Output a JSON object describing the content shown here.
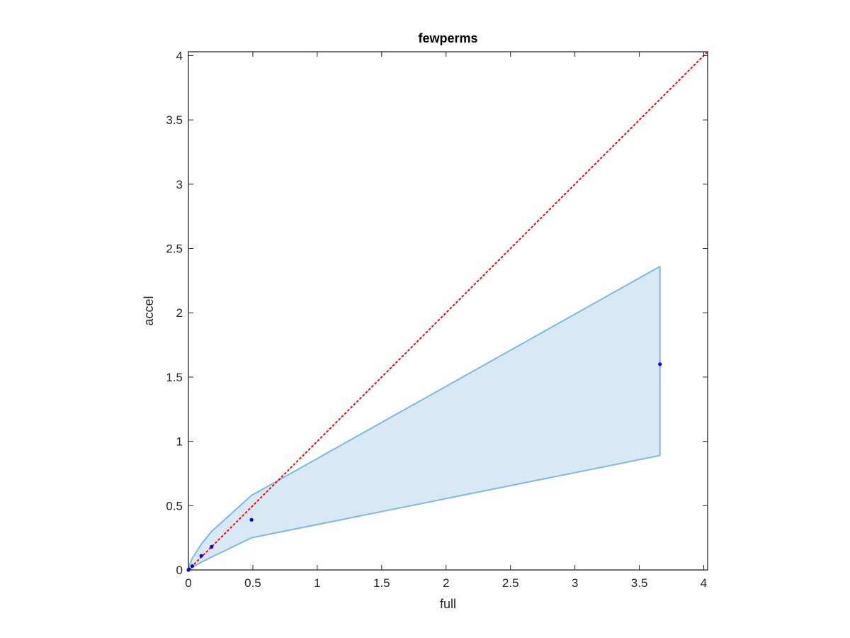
{
  "chart_data": {
    "type": "scatter",
    "title": "fewperms",
    "xlabel": "full",
    "ylabel": "accel",
    "xlim": [
      0,
      4.03
    ],
    "ylim": [
      0,
      4.03
    ],
    "xticks": [
      0,
      0.5,
      1,
      1.5,
      2,
      2.5,
      3,
      3.5,
      4
    ],
    "yticks": [
      0,
      0.5,
      1,
      1.5,
      2,
      2.5,
      3,
      3.5,
      4
    ],
    "xtick_labels": [
      "0",
      "0.5",
      "1",
      "1.5",
      "2",
      "2.5",
      "3",
      "3.5",
      "4"
    ],
    "ytick_labels": [
      "0",
      "0.5",
      "1",
      "1.5",
      "2",
      "2.5",
      "3",
      "3.5",
      "4"
    ],
    "grid": false,
    "points": {
      "color": "#0000ff",
      "x": [
        0.0,
        0.005,
        0.03,
        0.1,
        0.18,
        0.49,
        3.66
      ],
      "y": [
        0.0,
        0.005,
        0.03,
        0.11,
        0.18,
        0.39,
        1.6
      ]
    },
    "band": {
      "line_color": "#7fb9de",
      "fill_color": "#d8e8f5",
      "x": [
        0.0,
        0.005,
        0.03,
        0.1,
        0.18,
        0.49,
        3.66
      ],
      "upper": [
        0.0,
        0.03,
        0.09,
        0.2,
        0.3,
        0.58,
        2.36
      ],
      "lower": [
        0.0,
        0.0,
        0.02,
        0.06,
        0.1,
        0.25,
        0.89
      ]
    },
    "reference_line": {
      "style": "dotted",
      "color": "#ff0000",
      "x": [
        0,
        4.03
      ],
      "y": [
        0,
        4.03
      ]
    }
  }
}
